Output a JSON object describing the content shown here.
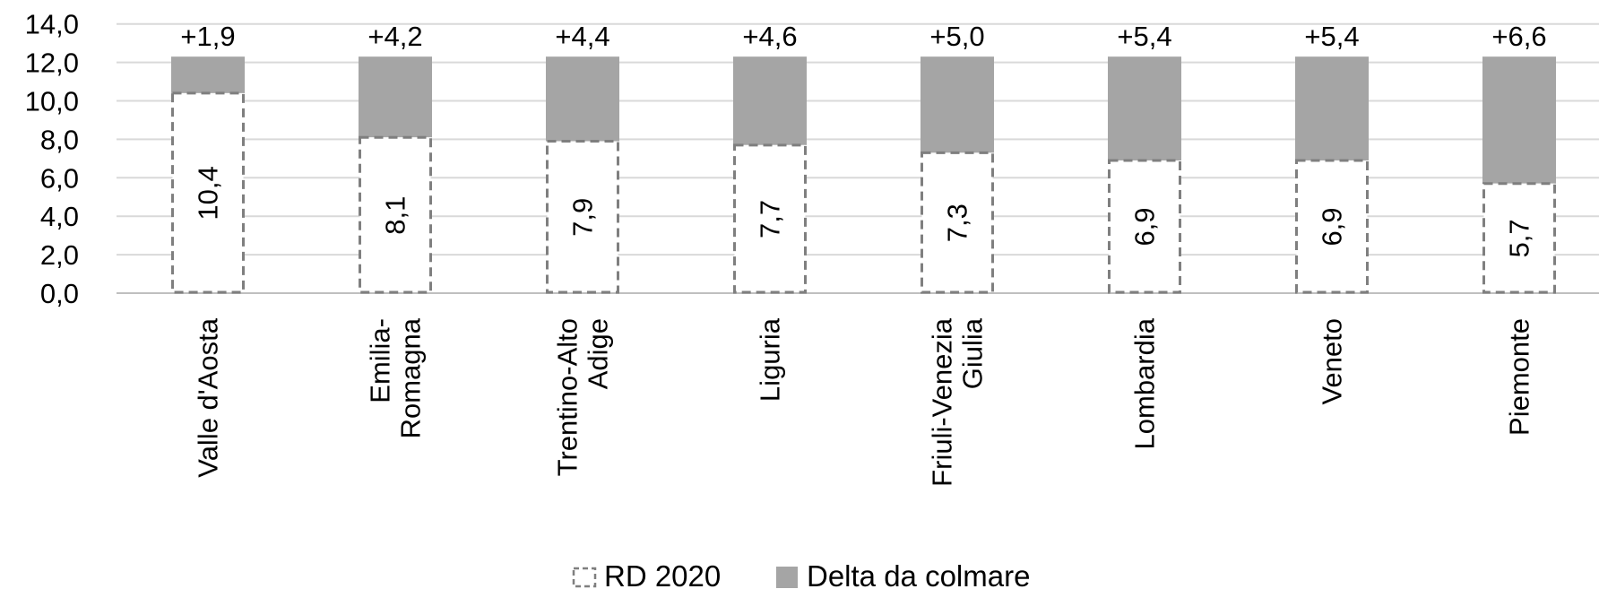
{
  "chart_data": {
    "type": "bar",
    "stacked": true,
    "categories": [
      "Valle d'Aosta",
      "Emilia-Romagna",
      "Trentino-Alto Adige",
      "Liguria",
      "Friuli-Venezia Giulia",
      "Lombardia",
      "Veneto",
      "Piemonte"
    ],
    "category_lines": [
      [
        "Valle d'Aosta"
      ],
      [
        "Emilia-",
        "Romagna"
      ],
      [
        "Trentino-Alto",
        "Adige"
      ],
      [
        "Liguria"
      ],
      [
        "Friuli-Venezia",
        "Giulia"
      ],
      [
        "Lombardia"
      ],
      [
        "Veneto"
      ],
      [
        "Piemonte"
      ]
    ],
    "series": [
      {
        "name": "RD 2020",
        "values": [
          10.4,
          8.1,
          7.9,
          7.7,
          7.3,
          6.9,
          6.9,
          5.7
        ],
        "labels": [
          "10,4",
          "8,1",
          "7,9",
          "7,7",
          "7,3",
          "6,9",
          "6,9",
          "5,7"
        ],
        "style": "dashed-outline",
        "color": "#7f7f7f"
      },
      {
        "name": "Delta da colmare",
        "values": [
          1.9,
          4.2,
          4.4,
          4.6,
          5.0,
          5.4,
          5.4,
          6.6
        ],
        "labels": [
          "+1,9",
          "+4,2",
          "+4,4",
          "+4,6",
          "+5,0",
          "+5,4",
          "+5,4",
          "+6,6"
        ],
        "style": "solid",
        "color": "#a5a5a5"
      }
    ],
    "ylim": [
      0,
      14
    ],
    "yticks": [
      "0,0",
      "2,0",
      "4,0",
      "6,0",
      "8,0",
      "10,0",
      "12,0",
      "14,0"
    ],
    "grid": true,
    "legend": "bottom",
    "xlabel": "",
    "ylabel": ""
  }
}
